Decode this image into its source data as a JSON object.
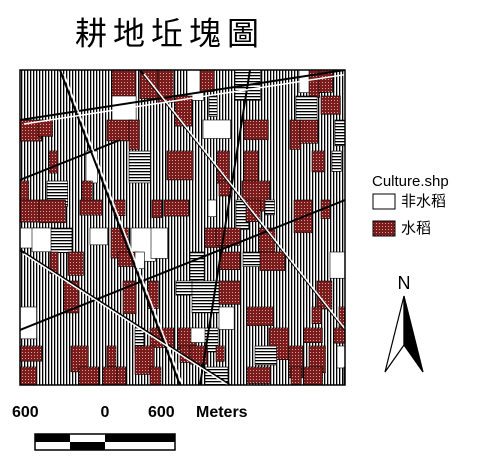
{
  "title": "耕地坵塊圖",
  "legend": {
    "title": "Culture.shp",
    "items": [
      {
        "label": "非水稻",
        "color": "#ffffff"
      },
      {
        "label": "水稻",
        "color": "#7a1c1c"
      }
    ]
  },
  "north_arrow": {
    "label": "N"
  },
  "scale_bar": {
    "labels": [
      "600",
      "0",
      "600"
    ],
    "unit": "Meters"
  }
}
